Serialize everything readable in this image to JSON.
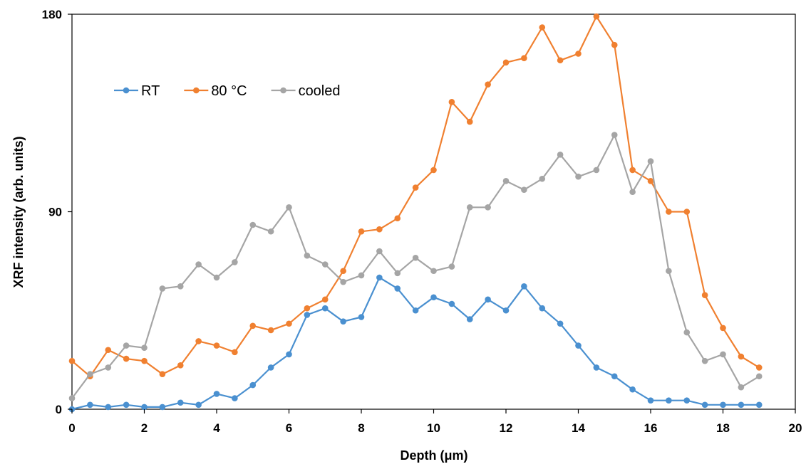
{
  "chart_data": {
    "type": "line",
    "title": "",
    "xlabel": "Depth (μm)",
    "ylabel": "XRF intensity (arb. units)",
    "xlim": [
      0,
      20
    ],
    "ylim": [
      0,
      180
    ],
    "xticks": [
      "0",
      "2",
      "4",
      "6",
      "8",
      "10",
      "12",
      "14",
      "16",
      "18",
      "20"
    ],
    "yticks": [
      "0",
      "90",
      "180"
    ],
    "grid": false,
    "legend_position": "top-left",
    "x": [
      0,
      0.5,
      1,
      1.5,
      2,
      2.5,
      3,
      3.5,
      4,
      4.5,
      5,
      5.5,
      6,
      6.5,
      7,
      7.5,
      8,
      8.5,
      9,
      9.5,
      10,
      10.5,
      11,
      11.5,
      12,
      12.5,
      13,
      13.5,
      14,
      14.5,
      15,
      15.5,
      16,
      16.5,
      17,
      17.5,
      18,
      18.5,
      19
    ],
    "series": [
      {
        "name": "RT",
        "color": "#4a90d0",
        "values": [
          0,
          2,
          1,
          2,
          1,
          1,
          3,
          2,
          7,
          5,
          11,
          19,
          25,
          43,
          46,
          40,
          42,
          60,
          55,
          45,
          51,
          48,
          41,
          50,
          45,
          56,
          46,
          39,
          29,
          19,
          15,
          9,
          4,
          4,
          4,
          2,
          2,
          2,
          2
        ]
      },
      {
        "name": "80 °C",
        "color": "#f08030",
        "values": [
          22,
          15,
          27,
          23,
          22,
          16,
          20,
          31,
          29,
          26,
          38,
          36,
          39,
          46,
          50,
          63,
          81,
          82,
          87,
          101,
          109,
          140,
          131,
          148,
          158,
          160,
          174,
          159,
          162,
          179,
          166,
          109,
          104,
          90,
          90,
          52,
          37,
          24,
          19
        ]
      },
      {
        "name": "cooled",
        "color": "#a5a5a5",
        "values": [
          5,
          16,
          19,
          29,
          28,
          55,
          56,
          66,
          60,
          67,
          84,
          81,
          92,
          70,
          66,
          58,
          61,
          72,
          62,
          69,
          63,
          65,
          92,
          92,
          104,
          100,
          105,
          116,
          106,
          109,
          125,
          99,
          113,
          63,
          35,
          22,
          25,
          10,
          15
        ]
      }
    ]
  }
}
